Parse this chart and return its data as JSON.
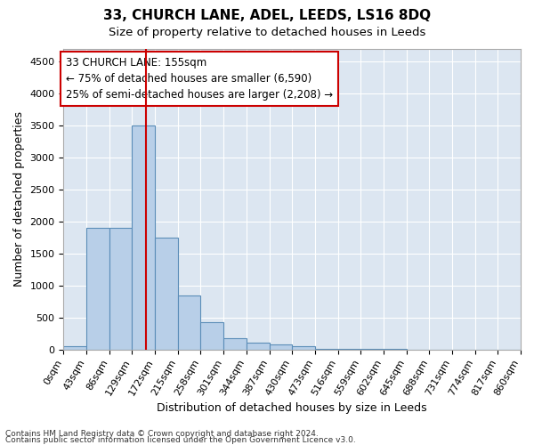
{
  "title": "33, CHURCH LANE, ADEL, LEEDS, LS16 8DQ",
  "subtitle": "Size of property relative to detached houses in Leeds",
  "xlabel": "Distribution of detached houses by size in Leeds",
  "ylabel": "Number of detached properties",
  "footer1": "Contains HM Land Registry data © Crown copyright and database right 2024.",
  "footer2": "Contains public sector information licensed under the Open Government Licence v3.0.",
  "bin_edges": [
    0,
    43,
    86,
    129,
    172,
    215,
    258,
    301,
    344,
    387,
    430,
    473,
    516,
    559,
    602,
    645,
    688,
    731,
    774,
    817,
    860
  ],
  "bar_heights": [
    50,
    1900,
    1900,
    3500,
    1750,
    850,
    430,
    170,
    110,
    80,
    55,
    15,
    5,
    2,
    2,
    1,
    1,
    0,
    0,
    0
  ],
  "bar_color": "#b8cfe8",
  "bar_edge_color": "#5b8db8",
  "property_size": 155,
  "vline_color": "#cc0000",
  "annotation_line1": "33 CHURCH LANE: 155sqm",
  "annotation_line2": "← 75% of detached houses are smaller (6,590)",
  "annotation_line3": "25% of semi-detached houses are larger (2,208) →",
  "annotation_box_color": "#ffffff",
  "annotation_box_edge": "#cc0000",
  "ylim": [
    0,
    4700
  ],
  "yticks": [
    0,
    500,
    1000,
    1500,
    2000,
    2500,
    3000,
    3500,
    4000,
    4500
  ],
  "title_fontsize": 11,
  "subtitle_fontsize": 9.5,
  "axis_label_fontsize": 9,
  "tick_fontsize": 8,
  "annotation_fontsize": 8.5,
  "footer_fontsize": 6.5,
  "plot_bg_color": "#dce6f1",
  "fig_bg_color": "#ffffff"
}
